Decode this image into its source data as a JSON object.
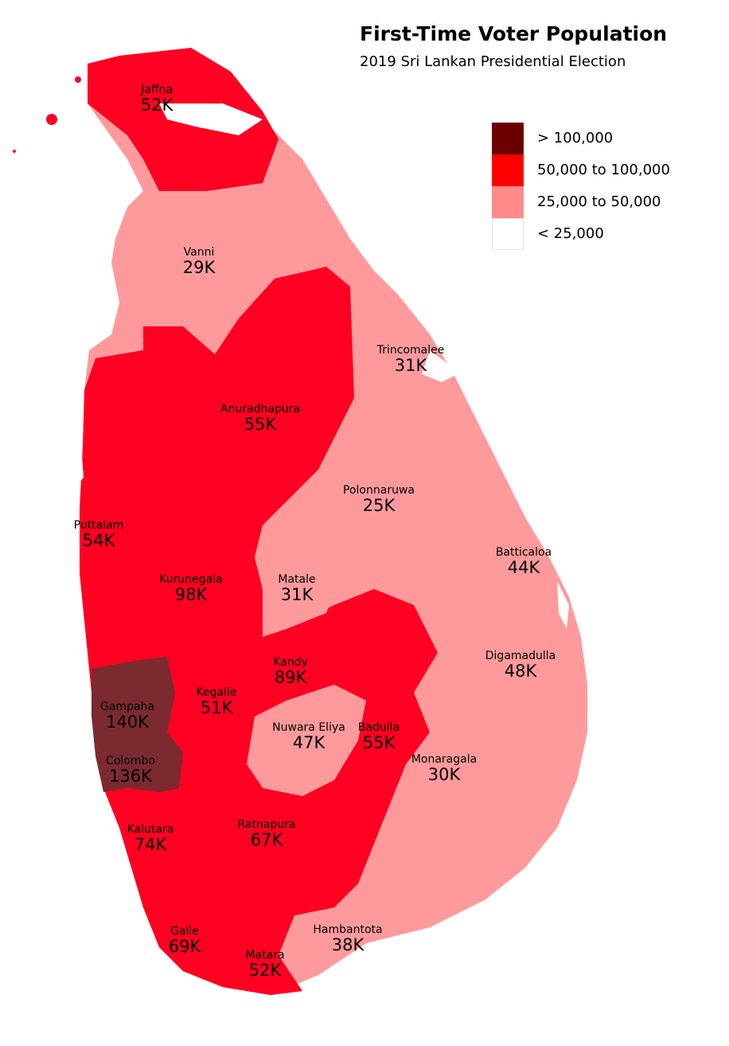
{
  "title": "First-Time Voter Population",
  "subtitle": "2019 Sri Lankan Presidential Election",
  "colors": {
    "over_100k": "#6b0000",
    "50k_100k": "#ff0000",
    "25k_50k": "#ff8a8a",
    "under_25k": "#ffffff",
    "map_high": "#ff0022",
    "map_mid": "#ff9a9c",
    "map_top": "#7b2a30"
  },
  "legend": [
    {
      "label": "> 100,000",
      "color": "#6b0000"
    },
    {
      "label": "50,000 to 100,000",
      "color": "#ff0000"
    },
    {
      "label": "25,000 to 50,000",
      "color": "#ff8a8a"
    },
    {
      "label": "< 25,000",
      "color": "#ffffff"
    }
  ],
  "districts": [
    {
      "name": "Jaffna",
      "value": "52K"
    },
    {
      "name": "Vanni",
      "value": "29K"
    },
    {
      "name": "Trincomalee",
      "value": "31K"
    },
    {
      "name": "Anuradhapura",
      "value": "55K"
    },
    {
      "name": "Polonnaruwa",
      "value": "25K"
    },
    {
      "name": "Puttalam",
      "value": "54K"
    },
    {
      "name": "Batticaloa",
      "value": "44K"
    },
    {
      "name": "Kurunegala",
      "value": "98K"
    },
    {
      "name": "Matale",
      "value": "31K"
    },
    {
      "name": "Digamadulla",
      "value": "48K"
    },
    {
      "name": "Kandy",
      "value": "89K"
    },
    {
      "name": "Gampaha",
      "value": "140K"
    },
    {
      "name": "Kegalle",
      "value": "51K"
    },
    {
      "name": "Nuwara Eliya",
      "value": "47K"
    },
    {
      "name": "Badulla",
      "value": "55K"
    },
    {
      "name": "Colombo",
      "value": "136K"
    },
    {
      "name": "Monaragala",
      "value": "30K"
    },
    {
      "name": "Kalutara",
      "value": "74K"
    },
    {
      "name": "Ratnapura",
      "value": "67K"
    },
    {
      "name": "Galle",
      "value": "69K"
    },
    {
      "name": "Hambantota",
      "value": "38K"
    },
    {
      "name": "Matara",
      "value": "52K"
    }
  ]
}
